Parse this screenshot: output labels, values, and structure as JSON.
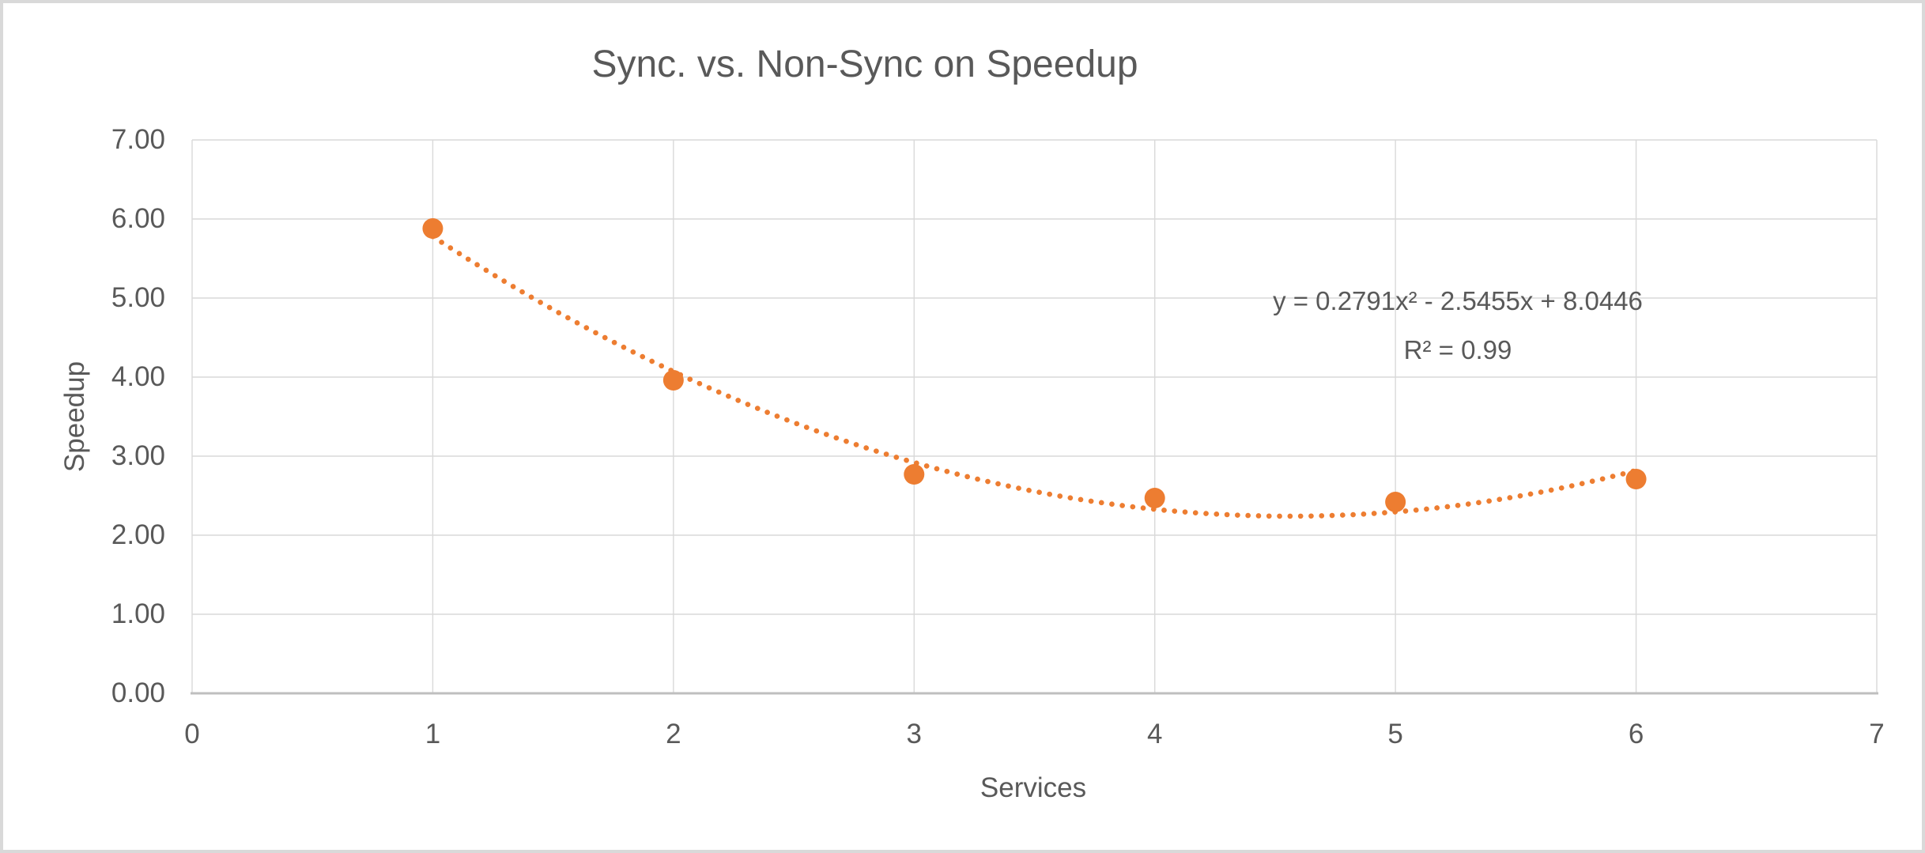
{
  "page": {
    "background": "#FFFFFF",
    "border_color": "#D9D9D9",
    "text_color": "#595959"
  },
  "chart_data": {
    "type": "scatter",
    "title": "Sync. vs. Non-Sync on Speedup",
    "xlabel": "Services",
    "ylabel": "Speedup",
    "x": [
      1,
      2,
      3,
      4,
      5,
      6
    ],
    "y": [
      5.88,
      3.96,
      2.77,
      2.47,
      2.42,
      2.71
    ],
    "xlim": [
      0,
      7
    ],
    "ylim": [
      0,
      7
    ],
    "x_ticks": [
      "0",
      "1",
      "2",
      "3",
      "4",
      "5",
      "6",
      "7"
    ],
    "y_ticks": [
      "0.00",
      "1.00",
      "2.00",
      "3.00",
      "4.00",
      "5.00",
      "6.00",
      "7.00"
    ],
    "grid": true,
    "legend_position": "none",
    "marker_color": "#ED7D31",
    "gridline_color": "#D9D9D9",
    "axis_line_color": "#BFBFBF",
    "trendline": {
      "type": "polynomial",
      "order": 2,
      "coefficients": {
        "a": 0.2791,
        "b": -2.5455,
        "c": 8.0446
      },
      "x_start": 1,
      "x_end": 6,
      "style": "dotted",
      "color": "#ED7D31",
      "equation_label": "y = 0.2791x² - 2.5455x + 8.0446",
      "r_squared_label": "R² = 0.99"
    }
  }
}
